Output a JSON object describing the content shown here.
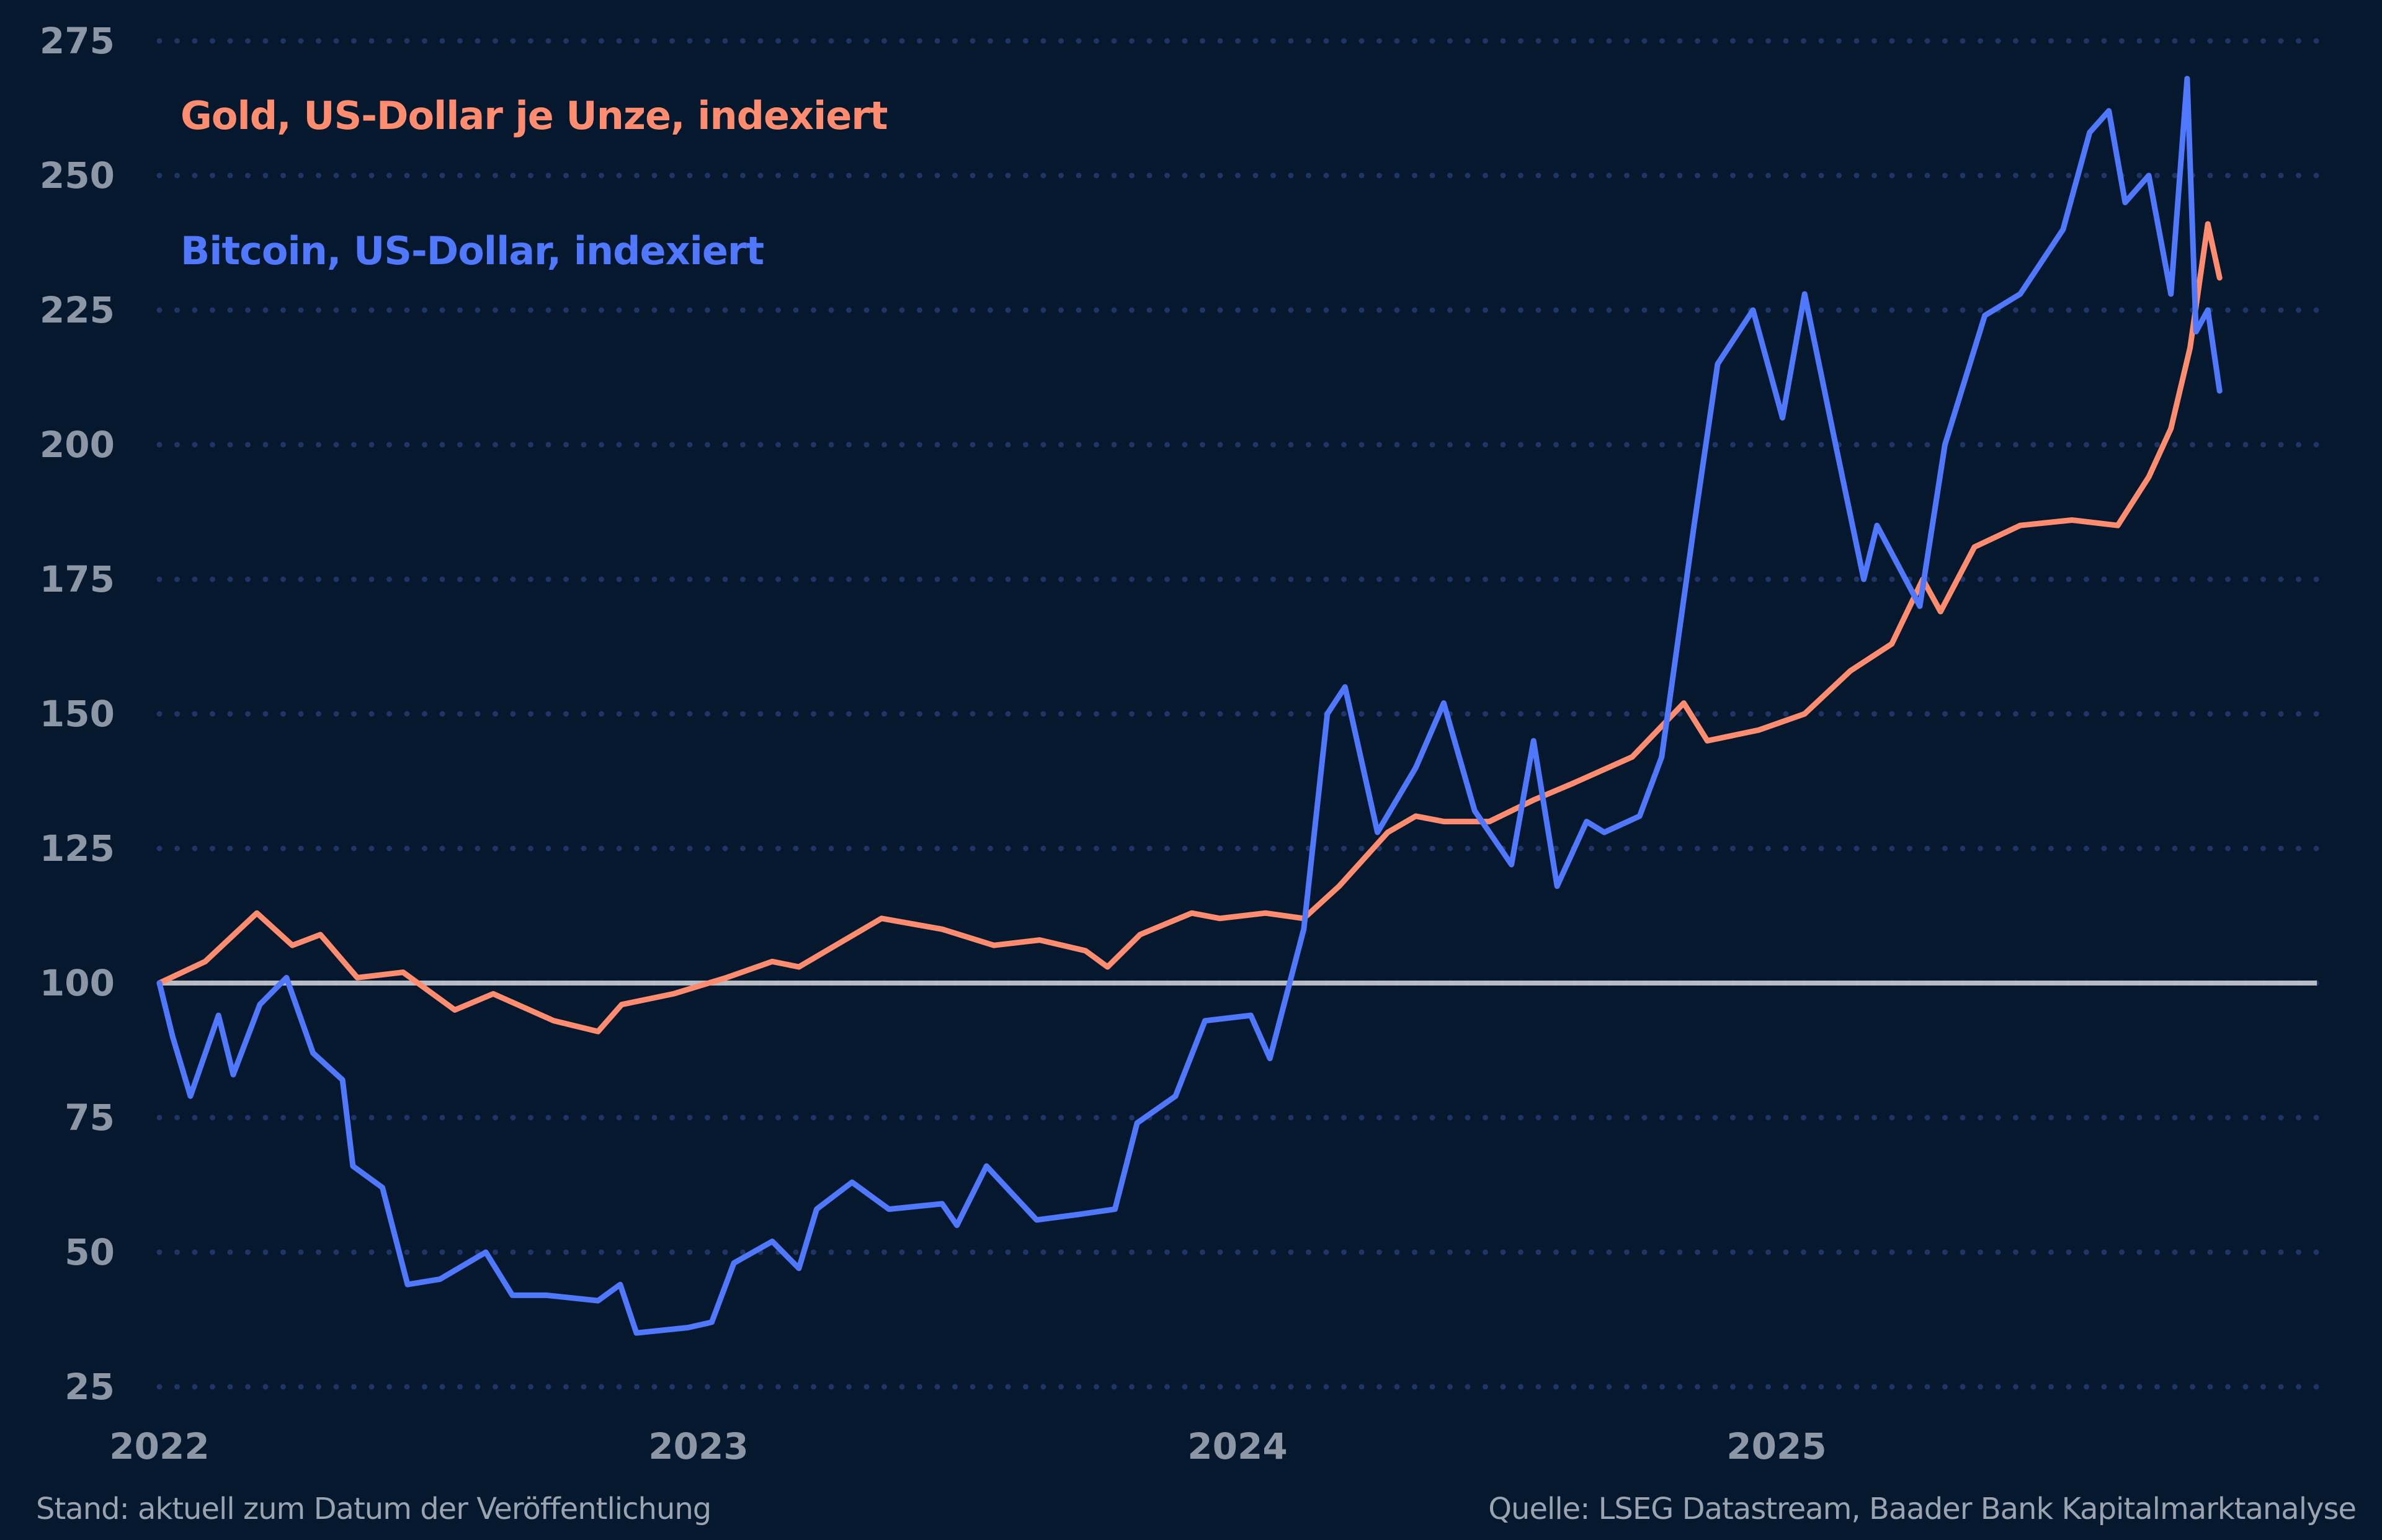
{
  "chart_data": {
    "type": "line",
    "title": "",
    "xlabel": "",
    "ylabel": "",
    "ylim": [
      25,
      275
    ],
    "yticks": [
      25,
      50,
      75,
      100,
      125,
      150,
      175,
      200,
      225,
      250,
      275
    ],
    "xticks": [
      "2022",
      "2023",
      "2024",
      "2025"
    ],
    "grid": "horizontal dotted",
    "reference_line": 100,
    "legend_placement": "top-left",
    "series": [
      {
        "name": "Gold, US-Dollar je Unze, indexiert",
        "color": "#ff8c6e",
        "x": [
          "2022-01-01",
          "2022-02-01",
          "2022-03-08",
          "2022-04-01",
          "2022-04-20",
          "2022-05-15",
          "2022-06-15",
          "2022-07-20",
          "2022-08-15",
          "2022-09-25",
          "2022-10-25",
          "2022-11-10",
          "2022-12-15",
          "2023-01-20",
          "2023-02-20",
          "2023-03-10",
          "2023-04-10",
          "2023-05-05",
          "2023-06-15",
          "2023-07-20",
          "2023-08-20",
          "2023-09-20",
          "2023-10-05",
          "2023-10-27",
          "2023-12-01",
          "2023-12-20",
          "2024-01-20",
          "2024-02-15",
          "2024-03-10",
          "2024-04-12",
          "2024-05-01",
          "2024-05-20",
          "2024-06-20",
          "2024-07-20",
          "2024-08-15",
          "2024-09-25",
          "2024-10-30",
          "2024-11-15",
          "2024-12-20",
          "2025-01-20",
          "2025-02-20",
          "2025-03-20",
          "2025-04-10",
          "2025-04-22",
          "2025-05-15",
          "2025-06-15",
          "2025-07-20",
          "2025-08-20",
          "2025-09-10",
          "2025-09-25",
          "2025-10-08",
          "2025-10-20",
          "2025-10-28"
        ],
        "y": [
          100,
          104,
          113,
          107,
          109,
          101,
          102,
          95,
          98,
          93,
          91,
          96,
          98,
          101,
          104,
          103,
          108,
          112,
          110,
          107,
          108,
          106,
          103,
          109,
          113,
          112,
          113,
          112,
          118,
          128,
          131,
          130,
          130,
          134,
          137,
          142,
          152,
          145,
          147,
          150,
          158,
          163,
          175,
          169,
          181,
          185,
          186,
          185,
          194,
          203,
          218,
          241,
          231
        ]
      },
      {
        "name": "Bitcoin, US-Dollar, indexiert",
        "color": "#4f78ff",
        "x": [
          "2022-01-01",
          "2022-01-10",
          "2022-01-22",
          "2022-02-10",
          "2022-02-20",
          "2022-03-10",
          "2022-03-28",
          "2022-04-15",
          "2022-05-05",
          "2022-05-12",
          "2022-06-01",
          "2022-06-18",
          "2022-07-10",
          "2022-08-10",
          "2022-08-28",
          "2022-09-20",
          "2022-10-25",
          "2022-11-09",
          "2022-11-20",
          "2022-12-25",
          "2023-01-10",
          "2023-01-25",
          "2023-02-20",
          "2023-03-10",
          "2023-03-22",
          "2023-04-15",
          "2023-05-10",
          "2023-06-15",
          "2023-06-25",
          "2023-07-15",
          "2023-08-18",
          "2023-09-15",
          "2023-10-10",
          "2023-10-25",
          "2023-11-20",
          "2023-12-10",
          "2024-01-10",
          "2024-01-23",
          "2024-02-15",
          "2024-03-02",
          "2024-03-14",
          "2024-04-05",
          "2024-05-01",
          "2024-05-20",
          "2024-06-10",
          "2024-07-05",
          "2024-07-20",
          "2024-08-05",
          "2024-08-25",
          "2024-09-06",
          "2024-09-30",
          "2024-10-15",
          "2024-11-06",
          "2024-11-22",
          "2024-12-16",
          "2025-01-05",
          "2025-01-20",
          "2025-02-10",
          "2025-03-01",
          "2025-03-10",
          "2025-04-08",
          "2025-04-25",
          "2025-05-22",
          "2025-06-15",
          "2025-07-14",
          "2025-08-01",
          "2025-08-14",
          "2025-08-25",
          "2025-09-10",
          "2025-09-25",
          "2025-10-06",
          "2025-10-12",
          "2025-10-20",
          "2025-10-28"
        ],
        "y": [
          100,
          90,
          79,
          94,
          83,
          96,
          101,
          87,
          82,
          66,
          62,
          44,
          45,
          50,
          42,
          42,
          41,
          44,
          35,
          36,
          37,
          48,
          52,
          47,
          58,
          63,
          58,
          59,
          55,
          66,
          56,
          57,
          58,
          74,
          79,
          93,
          94,
          86,
          110,
          150,
          155,
          128,
          140,
          152,
          132,
          122,
          145,
          118,
          130,
          128,
          131,
          142,
          185,
          215,
          225,
          205,
          228,
          200,
          175,
          185,
          170,
          200,
          224,
          228,
          240,
          258,
          262,
          245,
          250,
          228,
          268,
          221,
          225,
          210
        ]
      }
    ]
  },
  "footer": {
    "left": "Stand: aktuell zum Datum der Veröffentlichung",
    "right": "Quelle: LSEG Datastream, Baader Bank Kapitalmarktanalyse"
  }
}
